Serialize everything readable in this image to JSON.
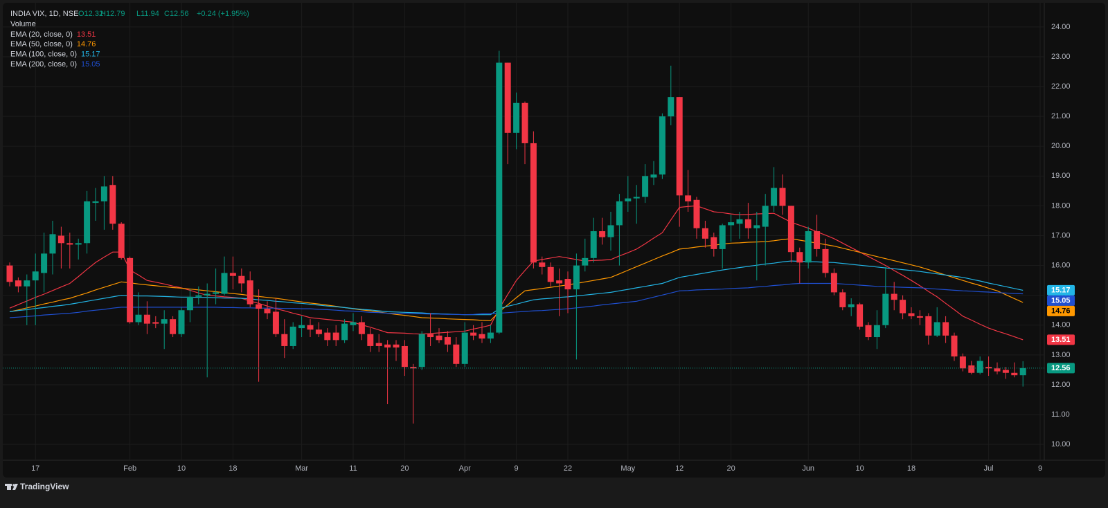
{
  "chart_data": {
    "type": "candlestick",
    "title": "INDIA VIX, 1D, NSE",
    "ohlc_legend": [
      "O12.32",
      "H12.79",
      "L11.94",
      "C12.56"
    ],
    "change": "+0.24 (+1.95%)",
    "volume_label": "Volume",
    "categories": [
      null,
      null,
      null,
      "17",
      null,
      null,
      null,
      null,
      null,
      null,
      null,
      null,
      null,
      null,
      "Feb",
      null,
      null,
      null,
      null,
      null,
      "10",
      null,
      null,
      null,
      null,
      null,
      "18",
      null,
      null,
      null,
      null,
      null,
      null,
      null,
      "Mar",
      null,
      null,
      null,
      null,
      null,
      "11",
      null,
      null,
      null,
      null,
      null,
      "20",
      null,
      null,
      null,
      null,
      null,
      null,
      "Apr",
      null,
      null,
      null,
      null,
      null,
      "9",
      null,
      null,
      null,
      null,
      null,
      "22",
      null,
      null,
      null,
      null,
      null,
      null,
      "May",
      null,
      null,
      null,
      null,
      null,
      "12",
      null,
      null,
      null,
      null,
      null,
      "20",
      null,
      null,
      null,
      null,
      null,
      null,
      null,
      null,
      "Jun",
      null,
      null,
      null,
      null,
      null,
      "10",
      null,
      null,
      null,
      null,
      null,
      "18",
      null,
      null,
      null,
      null,
      null,
      null,
      null,
      null,
      "Jul",
      null,
      null,
      null,
      null,
      null,
      "9"
    ],
    "open": [
      16,
      15.5,
      15.3,
      15.5,
      15.75,
      16.4,
      17.0,
      16.75,
      16.7,
      16.75,
      18.1,
      18.15,
      18.7,
      17.4,
      16.25,
      14.1,
      14.35,
      14.1,
      14.05,
      14.2,
      13.7,
      14.5,
      14.95,
      15.0,
      15.05,
      15.05,
      15.75,
      15.65,
      15.5,
      14.7,
      14.55,
      14.45,
      13.7,
      13.3,
      13.9,
      14.0,
      13.85,
      13.75,
      13.75,
      13.5,
      14.0,
      14.1,
      13.7,
      13.4,
      13.35,
      13.35,
      13.3,
      12.6,
      12.6,
      13.7,
      13.65,
      13.6,
      13.35,
      12.7,
      13.75,
      13.7,
      13.55,
      13.75,
      22.8,
      20.45,
      21.45,
      20.1,
      16.1,
      15.95,
      15.5,
      15.55,
      15.2,
      16.0,
      16.25,
      17.15,
      16.95,
      17.35,
      18.15,
      18.25,
      18.3,
      18.95,
      19.05,
      21.0,
      21.65,
      18.35,
      18.2,
      17.25,
      16.95,
      16.55,
      17.35,
      17.4,
      17.55,
      17.25,
      17.3,
      18.0,
      18.6,
      18.0,
      16.45,
      16.1,
      17.15,
      16.55,
      15.75,
      15.1,
      14.6,
      14.7,
      14.0,
      13.6,
      14.0,
      15.05,
      14.85,
      14.4,
      14.3,
      14.3,
      13.65,
      14.1,
      13.65,
      12.95,
      12.65,
      12.4,
      12.6,
      12.55,
      12.5,
      12.4,
      12.32,
      null,
      null
    ],
    "high": [
      16.1,
      15.6,
      15.7,
      16.4,
      17.1,
      17.5,
      17.3,
      17.1,
      16.9,
      18.5,
      18.6,
      19.0,
      19.0,
      17.45,
      16.3,
      15.1,
      14.8,
      14.3,
      14.5,
      14.3,
      14.6,
      15.2,
      15.3,
      15.4,
      15.9,
      16.3,
      16.3,
      15.9,
      15.8,
      15.2,
      14.8,
      14.9,
      14.2,
      14.1,
      14.3,
      14.2,
      14.1,
      13.9,
      14.0,
      14.2,
      14.4,
      14.3,
      13.9,
      13.7,
      13.5,
      13.5,
      13.5,
      12.7,
      13.8,
      14.4,
      13.9,
      13.8,
      13.6,
      14.1,
      14.0,
      14.1,
      14.0,
      23.2,
      22.8,
      21.8,
      21.5,
      20.5,
      16.3,
      16.1,
      15.9,
      15.8,
      16.4,
      16.9,
      17.6,
      17.6,
      17.8,
      18.4,
      19.0,
      18.7,
      19.4,
      19.5,
      21.1,
      22.7,
      21.65,
      19.2,
      18.3,
      17.5,
      17.1,
      17.4,
      17.7,
      17.8,
      18.1,
      17.8,
      18.4,
      19.3,
      19.05,
      18.0,
      16.6,
      17.3,
      17.7,
      16.9,
      15.9,
      15.2,
      14.9,
      14.75,
      14.1,
      14.5,
      15.95,
      15.45,
      15.0,
      14.6,
      14.5,
      14.4,
      14.6,
      14.3,
      13.75,
      13.05,
      12.8,
      12.95,
      12.95,
      12.75,
      12.6,
      12.75,
      12.79,
      null,
      null
    ],
    "low": [
      15.3,
      15.1,
      14.0,
      14.0,
      15.1,
      15.7,
      15.9,
      15.9,
      16.2,
      16.4,
      17.5,
      17.2,
      17.2,
      16.2,
      14.05,
      14.0,
      13.7,
      13.9,
      13.2,
      13.6,
      13.6,
      14.1,
      14.7,
      12.25,
      14.7,
      15.0,
      15.2,
      15.1,
      14.6,
      12.1,
      14.2,
      13.6,
      12.9,
      13.2,
      13.6,
      13.6,
      13.6,
      13.3,
      13.3,
      13.4,
      13.8,
      13.5,
      13.1,
      13.1,
      11.35,
      12.8,
      12.3,
      10.7,
      12.5,
      13.3,
      13.4,
      13.1,
      12.6,
      12.6,
      13.5,
      13.4,
      13.4,
      13.7,
      19.4,
      19.9,
      19.4,
      15.9,
      15.7,
      15.3,
      14.3,
      14.4,
      12.85,
      15.8,
      16.1,
      16.7,
      16.5,
      16.0,
      17.8,
      17.4,
      18.1,
      18.7,
      18.9,
      20.7,
      17.3,
      17.8,
      16.9,
      16.6,
      16.3,
      15.9,
      16.8,
      16.9,
      16.9,
      15.5,
      16.0,
      17.8,
      17.7,
      16.1,
      15.4,
      15.9,
      16.3,
      15.6,
      15.0,
      14.5,
      14.3,
      13.85,
      13.5,
      13.2,
      13.9,
      14.5,
      14.2,
      14.2,
      14.0,
      13.35,
      13.6,
      13.4,
      12.8,
      12.45,
      12.35,
      12.35,
      12.3,
      12.35,
      12.2,
      12.25,
      11.94,
      null,
      null
    ],
    "close": [
      15.45,
      15.3,
      15.5,
      15.8,
      16.4,
      17.05,
      16.75,
      16.7,
      16.75,
      18.15,
      18.15,
      18.65,
      17.4,
      16.25,
      14.1,
      14.35,
      14.05,
      14.05,
      14.2,
      13.7,
      14.5,
      14.95,
      15.0,
      15.05,
      15.1,
      15.75,
      15.65,
      15.4,
      14.7,
      14.55,
      14.4,
      13.7,
      13.3,
      13.95,
      14.0,
      13.85,
      13.7,
      13.5,
      13.5,
      14.05,
      14.1,
      13.7,
      13.3,
      13.3,
      13.25,
      13.25,
      12.6,
      12.55,
      13.7,
      13.6,
      13.5,
      13.35,
      12.7,
      13.75,
      13.65,
      13.55,
      13.75,
      22.8,
      20.45,
      21.45,
      20.1,
      16.1,
      15.95,
      15.45,
      15.4,
      15.2,
      16.0,
      16.25,
      17.15,
      16.95,
      17.35,
      18.15,
      18.25,
      18.3,
      19.0,
      19.05,
      21.0,
      21.65,
      18.35,
      18.15,
      17.25,
      16.9,
      16.55,
      17.35,
      17.45,
      17.55,
      17.25,
      17.35,
      18.0,
      18.6,
      18.0,
      16.45,
      16.1,
      17.15,
      16.55,
      15.75,
      15.1,
      14.6,
      14.7,
      13.95,
      13.6,
      14.0,
      15.05,
      14.85,
      14.4,
      14.3,
      14.25,
      13.65,
      14.1,
      13.65,
      12.95,
      12.55,
      12.4,
      12.8,
      12.55,
      12.45,
      12.4,
      12.32,
      12.56,
      null,
      null
    ],
    "colors": {
      "up": "#089981",
      "down": "#f23645"
    },
    "series": [
      {
        "name": "EMA (20, close, 0)",
        "color": "#f23645",
        "values": [
          14.57,
          14.69,
          14.81,
          14.93,
          15.04,
          15.16,
          15.28,
          15.4,
          15.63,
          15.87,
          16.1,
          16.28,
          16.45,
          16.45,
          15.85,
          15.68,
          15.5,
          15.44,
          15.38,
          15.31,
          15.25,
          15.17,
          15.08,
          15.0,
          14.98,
          14.95,
          14.93,
          14.9,
          14.81,
          14.73,
          14.64,
          14.55,
          14.48,
          14.4,
          14.33,
          14.25,
          14.22,
          14.19,
          14.16,
          14.13,
          14.1,
          14.01,
          13.93,
          13.84,
          13.75,
          13.74,
          13.73,
          13.71,
          13.7,
          13.72,
          13.74,
          13.76,
          13.78,
          13.8,
          13.87,
          13.93,
          14.0,
          14.55,
          15.03,
          15.5,
          15.83,
          16.15,
          16.2,
          16.25,
          16.3,
          16.25,
          16.2,
          16.15,
          16.17,
          16.18,
          16.2,
          16.32,
          16.43,
          16.55,
          16.73,
          16.92,
          17.1,
          17.53,
          17.95,
          17.98,
          18.0,
          17.9,
          17.8,
          17.77,
          17.73,
          17.7,
          17.71,
          17.73,
          17.74,
          17.75,
          17.6,
          17.45,
          17.35,
          17.25,
          17.13,
          17.02,
          16.9,
          16.75,
          16.6,
          16.45,
          16.3,
          16.15,
          16.0,
          15.83,
          15.67,
          15.5,
          15.32,
          15.13,
          14.95,
          14.73,
          14.52,
          14.3,
          14.17,
          14.03,
          13.9,
          13.8,
          13.71,
          13.61,
          13.51,
          null,
          null
        ]
      },
      {
        "name": "EMA (50, close, 0)",
        "color": "#ff9800",
        "values": [
          14.45,
          14.51,
          14.58,
          14.64,
          14.71,
          14.77,
          14.84,
          14.9,
          14.99,
          15.08,
          15.18,
          15.27,
          15.36,
          15.45,
          15.42,
          15.38,
          15.35,
          15.32,
          15.29,
          15.26,
          15.24,
          15.21,
          15.18,
          15.15,
          15.12,
          15.09,
          15.06,
          15.03,
          14.99,
          14.96,
          14.93,
          14.9,
          14.86,
          14.82,
          14.78,
          14.74,
          14.71,
          14.67,
          14.63,
          14.59,
          14.55,
          14.51,
          14.48,
          14.44,
          14.4,
          14.36,
          14.33,
          14.29,
          14.25,
          14.24,
          14.23,
          14.21,
          14.2,
          14.19,
          14.18,
          14.16,
          14.15,
          14.45,
          14.68,
          14.92,
          15.15,
          15.19,
          15.23,
          15.27,
          15.31,
          15.35,
          15.4,
          15.45,
          15.5,
          15.55,
          15.6,
          15.72,
          15.84,
          15.96,
          16.08,
          16.2,
          16.32,
          16.43,
          16.55,
          16.58,
          16.62,
          16.65,
          16.68,
          16.72,
          16.75,
          16.76,
          16.78,
          16.79,
          16.8,
          16.83,
          16.87,
          16.9,
          16.85,
          16.8,
          16.75,
          16.7,
          16.65,
          16.58,
          16.51,
          16.44,
          16.37,
          16.3,
          16.23,
          16.16,
          16.09,
          16.02,
          15.95,
          15.86,
          15.77,
          15.68,
          15.59,
          15.5,
          15.41,
          15.33,
          15.24,
          15.15,
          15.02,
          14.89,
          14.76,
          null,
          null
        ]
      },
      {
        "name": "EMA (100, close, 0)",
        "color": "#22b5e6",
        "values": [
          14.45,
          14.49,
          14.52,
          14.56,
          14.59,
          14.63,
          14.66,
          14.7,
          14.75,
          14.8,
          14.85,
          14.9,
          14.95,
          15.0,
          14.99,
          14.98,
          14.98,
          14.97,
          14.96,
          14.95,
          14.94,
          14.94,
          14.93,
          14.93,
          14.92,
          14.91,
          14.91,
          14.9,
          14.88,
          14.85,
          14.83,
          14.8,
          14.78,
          14.75,
          14.73,
          14.7,
          14.67,
          14.64,
          14.62,
          14.59,
          14.56,
          14.53,
          14.51,
          14.48,
          14.45,
          14.44,
          14.43,
          14.42,
          14.41,
          14.39,
          14.38,
          14.37,
          14.36,
          14.35,
          14.35,
          14.35,
          14.35,
          14.55,
          14.63,
          14.7,
          14.78,
          14.85,
          14.88,
          14.9,
          14.93,
          14.95,
          14.98,
          15.01,
          15.04,
          15.07,
          15.1,
          15.15,
          15.2,
          15.25,
          15.3,
          15.35,
          15.4,
          15.5,
          15.6,
          15.65,
          15.7,
          15.75,
          15.8,
          15.85,
          15.89,
          15.93,
          15.97,
          16.01,
          16.05,
          16.08,
          16.12,
          16.15,
          16.14,
          16.13,
          16.12,
          16.11,
          16.1,
          16.07,
          16.04,
          16.01,
          15.98,
          15.95,
          15.92,
          15.89,
          15.86,
          15.83,
          15.8,
          15.76,
          15.72,
          15.68,
          15.64,
          15.6,
          15.54,
          15.48,
          15.41,
          15.35,
          15.29,
          15.23,
          15.17,
          null,
          null
        ]
      },
      {
        "name": "EMA (200, close, 0)",
        "color": "#1f4fd1",
        "values": [
          14.25,
          14.27,
          14.29,
          14.31,
          14.34,
          14.36,
          14.38,
          14.4,
          14.43,
          14.47,
          14.5,
          14.53,
          14.57,
          14.6,
          14.6,
          14.6,
          14.6,
          14.6,
          14.6,
          14.6,
          14.6,
          14.6,
          14.6,
          14.6,
          14.6,
          14.59,
          14.59,
          14.58,
          14.58,
          14.57,
          14.57,
          14.57,
          14.56,
          14.56,
          14.55,
          14.55,
          14.53,
          14.52,
          14.5,
          14.48,
          14.47,
          14.45,
          14.43,
          14.42,
          14.4,
          14.39,
          14.39,
          14.38,
          14.38,
          14.37,
          14.37,
          14.36,
          14.36,
          14.35,
          14.36,
          14.38,
          14.39,
          14.4,
          14.42,
          14.44,
          14.46,
          14.48,
          14.49,
          14.51,
          14.53,
          14.55,
          14.58,
          14.61,
          14.64,
          14.68,
          14.71,
          14.74,
          14.77,
          14.8,
          14.87,
          14.94,
          15.01,
          15.08,
          15.15,
          15.16,
          15.18,
          15.19,
          15.2,
          15.21,
          15.23,
          15.24,
          15.25,
          15.28,
          15.3,
          15.33,
          15.35,
          15.38,
          15.4,
          15.4,
          15.4,
          15.4,
          15.4,
          15.38,
          15.36,
          15.34,
          15.32,
          15.3,
          15.29,
          15.28,
          15.27,
          15.26,
          15.25,
          15.23,
          15.21,
          15.19,
          15.17,
          15.15,
          15.14,
          15.12,
          15.11,
          15.09,
          15.08,
          15.06,
          15.05,
          null,
          null
        ]
      }
    ],
    "ylim": [
      9.47,
      24.67
    ],
    "yticks": [
      {
        "value": 10,
        "label": "10.00"
      },
      {
        "value": 11,
        "label": "11.00"
      },
      {
        "value": 12,
        "label": "12.00"
      },
      {
        "value": 13,
        "label": "13.00"
      },
      {
        "value": 14,
        "label": "14.00"
      },
      {
        "value": 15,
        "label": "15.00"
      },
      {
        "value": 16,
        "label": "16.00"
      },
      {
        "value": 17,
        "label": "17.00"
      },
      {
        "value": 18,
        "label": "18.00"
      },
      {
        "value": 19,
        "label": "19.00"
      },
      {
        "value": 20,
        "label": "20.00"
      },
      {
        "value": 21,
        "label": "21.00"
      },
      {
        "value": 22,
        "label": "22.00"
      },
      {
        "value": 23,
        "label": "23.00"
      },
      {
        "value": 24,
        "label": "24.00"
      }
    ],
    "grid": true,
    "last_price_line": true
  },
  "footer": {
    "brand": "TradingView"
  }
}
